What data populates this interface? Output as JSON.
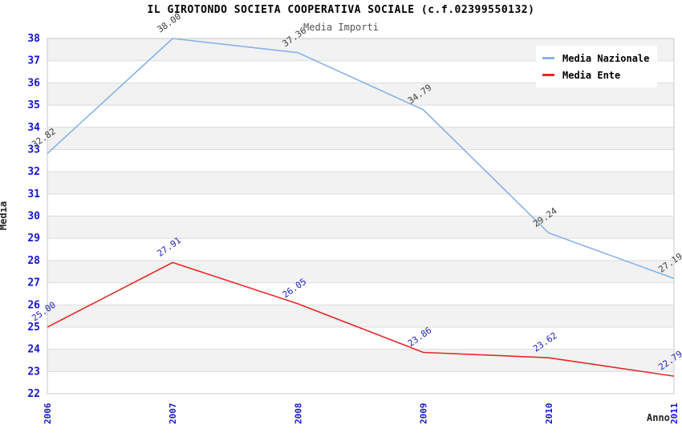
{
  "title": "IL GIROTONDO SOCIETA COOPERATIVA SOCIALE (c.f.02399550132)",
  "subtitle": "Media Importi",
  "chart_data": {
    "type": "line",
    "x": [
      2006,
      2007,
      2008,
      2009,
      2010,
      2011
    ],
    "series": [
      {
        "name": "Media Nazionale",
        "values": [
          32.82,
          38.0,
          37.36,
          34.79,
          29.24,
          27.19
        ],
        "point_labels": [
          "32.82",
          "38.00",
          "37.36",
          "34.79",
          "29.24",
          "27.19"
        ],
        "color": "#88b3e7",
        "label_color": "#3c3c3c"
      },
      {
        "name": "Media Ente",
        "values": [
          25.0,
          27.91,
          26.05,
          23.86,
          23.62,
          22.79
        ],
        "point_labels": [
          "25.00",
          "27.91",
          "26.05",
          "23.86",
          "23.62",
          "22.79"
        ],
        "color": "#e62929",
        "label_color": "#2222bb"
      }
    ],
    "xlabel": "Anno",
    "ylabel": "Media",
    "ylim": [
      22,
      38
    ],
    "ytick_step": 1,
    "grid": "horizontal-bands",
    "legend_position": "top-right",
    "band_color_odd": "#f2f2f2",
    "band_color_even": "#ffffff",
    "gridline_color": "#dcdcdc",
    "plot_border_color": "#c8c8c8",
    "tick_label_color": "#1515cc"
  }
}
